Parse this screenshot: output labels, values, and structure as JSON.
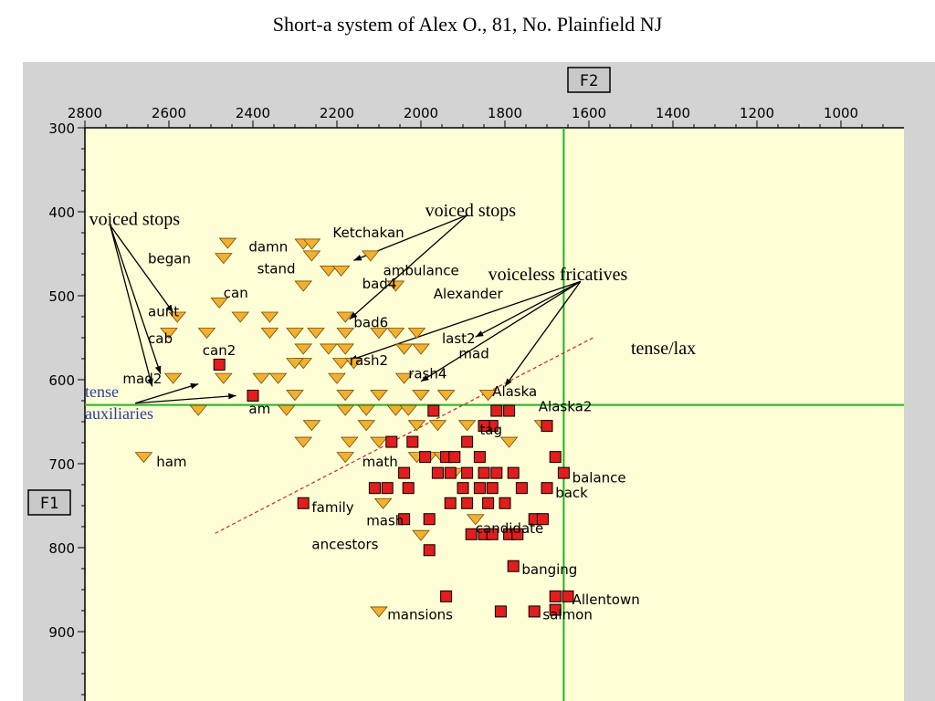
{
  "title": "Short-a system of Alex O., 81, No. Plainfield NJ",
  "colors": {
    "plot_bg": "#fdfdd6",
    "frame_bg": "#d3d3d3",
    "green": "#22b422",
    "tense_marker": "#e11d1d",
    "lax_marker": "#f0b030",
    "dashed": "#e02020",
    "blue_text": "#2a3aa8"
  },
  "chart_data": {
    "type": "scatter",
    "x_axis_name": "F2",
    "y_axis_name": "F1",
    "xlim": [
      2800,
      800
    ],
    "ylim": [
      300,
      950
    ],
    "x_ticks": [
      2800,
      2600,
      2400,
      2200,
      2000,
      1800,
      1600,
      1400,
      1200,
      1000
    ],
    "y_ticks": [
      300,
      400,
      500,
      600,
      700,
      800,
      900
    ],
    "reference_lines": {
      "F2": 1660,
      "F1": 630
    },
    "tense_lax_line": {
      "label": "tense/lax",
      "from": [
        2490,
        783
      ],
      "to": [
        1590,
        550
      ]
    },
    "lax_points": [
      [
        2460,
        437
      ],
      [
        2470,
        455
      ],
      [
        2280,
        438
      ],
      [
        2260,
        438
      ],
      [
        2260,
        452
      ],
      [
        2120,
        452
      ],
      [
        2220,
        470
      ],
      [
        2190,
        470
      ],
      [
        2280,
        488
      ],
      [
        2060,
        488
      ],
      [
        2480,
        508
      ],
      [
        2180,
        525
      ],
      [
        2580,
        525
      ],
      [
        2600,
        544
      ],
      [
        2510,
        544
      ],
      [
        2430,
        525
      ],
      [
        2360,
        525
      ],
      [
        2360,
        544
      ],
      [
        2300,
        544
      ],
      [
        2250,
        544
      ],
      [
        2180,
        544
      ],
      [
        2100,
        544
      ],
      [
        2060,
        544
      ],
      [
        2010,
        544
      ],
      [
        2280,
        563
      ],
      [
        2220,
        563
      ],
      [
        2180,
        563
      ],
      [
        2040,
        563
      ],
      [
        2000,
        563
      ],
      [
        2190,
        580
      ],
      [
        2160,
        580
      ],
      [
        2280,
        580
      ],
      [
        2300,
        580
      ],
      [
        2590,
        598
      ],
      [
        2470,
        598
      ],
      [
        2380,
        598
      ],
      [
        2340,
        598
      ],
      [
        2200,
        598
      ],
      [
        2040,
        598
      ],
      [
        2300,
        618
      ],
      [
        2180,
        618
      ],
      [
        2100,
        618
      ],
      [
        2000,
        618
      ],
      [
        1940,
        618
      ],
      [
        1840,
        618
      ],
      [
        2530,
        636
      ],
      [
        2320,
        636
      ],
      [
        2180,
        636
      ],
      [
        2130,
        636
      ],
      [
        2060,
        636
      ],
      [
        2030,
        636
      ],
      [
        2260,
        654
      ],
      [
        2130,
        654
      ],
      [
        2010,
        654
      ],
      [
        1960,
        654
      ],
      [
        1890,
        654
      ],
      [
        2280,
        674
      ],
      [
        2170,
        674
      ],
      [
        2100,
        674
      ],
      [
        1790,
        674
      ],
      [
        1710,
        654
      ],
      [
        2180,
        692
      ],
      [
        2010,
        692
      ],
      [
        1980,
        692
      ],
      [
        1950,
        692
      ],
      [
        1920,
        711
      ],
      [
        2090,
        747
      ],
      [
        1870,
        766
      ],
      [
        2000,
        785
      ],
      [
        2660,
        692
      ],
      [
        2100,
        876
      ]
    ],
    "tense_points": [
      [
        2480,
        582
      ],
      [
        2400,
        619
      ],
      [
        1970,
        637
      ],
      [
        1830,
        655
      ],
      [
        1850,
        655
      ],
      [
        1700,
        655
      ],
      [
        1820,
        637
      ],
      [
        1790,
        637
      ],
      [
        2070,
        674
      ],
      [
        2020,
        674
      ],
      [
        1890,
        674
      ],
      [
        1940,
        692
      ],
      [
        1990,
        692
      ],
      [
        1920,
        692
      ],
      [
        1860,
        692
      ],
      [
        1680,
        692
      ],
      [
        2040,
        711
      ],
      [
        1960,
        711
      ],
      [
        1930,
        711
      ],
      [
        1890,
        711
      ],
      [
        1850,
        711
      ],
      [
        1820,
        711
      ],
      [
        1780,
        711
      ],
      [
        1660,
        711
      ],
      [
        1900,
        729
      ],
      [
        1860,
        729
      ],
      [
        1830,
        729
      ],
      [
        1760,
        729
      ],
      [
        1700,
        729
      ],
      [
        2110,
        729
      ],
      [
        2080,
        729
      ],
      [
        2030,
        729
      ],
      [
        1930,
        747
      ],
      [
        1890,
        747
      ],
      [
        1840,
        747
      ],
      [
        1800,
        747
      ],
      [
        2280,
        747
      ],
      [
        1980,
        766
      ],
      [
        1730,
        766
      ],
      [
        1710,
        766
      ],
      [
        2040,
        766
      ],
      [
        1880,
        784
      ],
      [
        1850,
        784
      ],
      [
        1830,
        784
      ],
      [
        1790,
        784
      ],
      [
        1770,
        784
      ],
      [
        1980,
        803
      ],
      [
        1780,
        822
      ],
      [
        1940,
        858
      ],
      [
        1680,
        858
      ],
      [
        1650,
        858
      ],
      [
        1810,
        876
      ],
      [
        1730,
        876
      ],
      [
        1680,
        874
      ]
    ],
    "word_labels": [
      {
        "text": "damn",
        "x": 2410,
        "y": 442
      },
      {
        "text": "Ketchakan",
        "x": 2210,
        "y": 425
      },
      {
        "text": "began",
        "x": 2650,
        "y": 456
      },
      {
        "text": "stand",
        "x": 2390,
        "y": 468
      },
      {
        "text": "ambulance",
        "x": 2090,
        "y": 470
      },
      {
        "text": "bad4",
        "x": 2140,
        "y": 486
      },
      {
        "text": "can",
        "x": 2470,
        "y": 497
      },
      {
        "text": "Alexander",
        "x": 1970,
        "y": 498
      },
      {
        "text": "aunt",
        "x": 2650,
        "y": 519
      },
      {
        "text": "bad6",
        "x": 2160,
        "y": 532
      },
      {
        "text": "cab",
        "x": 2650,
        "y": 551
      },
      {
        "text": "last2",
        "x": 1950,
        "y": 551
      },
      {
        "text": "can2",
        "x": 2520,
        "y": 565
      },
      {
        "text": "mad",
        "x": 1910,
        "y": 569
      },
      {
        "text": "rash2",
        "x": 2170,
        "y": 577
      },
      {
        "text": "mad2",
        "x": 2710,
        "y": 599
      },
      {
        "text": "rash4",
        "x": 2030,
        "y": 593
      },
      {
        "text": "Alaska",
        "x": 1830,
        "y": 614
      },
      {
        "text": "am",
        "x": 2410,
        "y": 635
      },
      {
        "text": "Alaska2",
        "x": 1720,
        "y": 632
      },
      {
        "text": "tag",
        "x": 1860,
        "y": 660
      },
      {
        "text": "ham",
        "x": 2630,
        "y": 698
      },
      {
        "text": "math",
        "x": 2140,
        "y": 698
      },
      {
        "text": "balance",
        "x": 1640,
        "y": 717
      },
      {
        "text": "back",
        "x": 1680,
        "y": 735
      },
      {
        "text": "family",
        "x": 2260,
        "y": 752
      },
      {
        "text": "mash",
        "x": 2130,
        "y": 768
      },
      {
        "text": "candidate",
        "x": 1870,
        "y": 777
      },
      {
        "text": "ancestors",
        "x": 2260,
        "y": 796
      },
      {
        "text": "banging",
        "x": 1760,
        "y": 826
      },
      {
        "text": "Allentown",
        "x": 1640,
        "y": 862
      },
      {
        "text": "mansions",
        "x": 2080,
        "y": 880
      },
      {
        "text": "salmon",
        "x": 1710,
        "y": 880
      }
    ],
    "annotations": [
      {
        "text": "voiced stops",
        "x": 2790,
        "y": 409,
        "style": "note"
      },
      {
        "text": "voiced stops",
        "x": 1990,
        "y": 399,
        "style": "note"
      },
      {
        "text": "voiceless fricatives",
        "x": 1840,
        "y": 475,
        "style": "note"
      },
      {
        "text": "tense/lax",
        "x": 1500,
        "y": 563,
        "style": "note"
      },
      {
        "text": "tense",
        "x": 2800,
        "y": 614,
        "style": "note-blue"
      },
      {
        "text": "auxiliaries",
        "x": 2800,
        "y": 640,
        "style": "note-blue"
      }
    ],
    "arrows": [
      {
        "from": [
          2740,
          416
        ],
        "to": [
          2590,
          520
        ]
      },
      {
        "from": [
          2740,
          416
        ],
        "to": [
          2620,
          593
        ]
      },
      {
        "from": [
          2740,
          416
        ],
        "to": [
          2640,
          608
        ]
      },
      {
        "from": [
          1890,
          404
        ],
        "to": [
          2160,
          458
        ]
      },
      {
        "from": [
          1890,
          404
        ],
        "to": [
          2170,
          528
        ]
      },
      {
        "from": [
          1620,
          483
        ],
        "to": [
          1870,
          549
        ]
      },
      {
        "from": [
          1620,
          483
        ],
        "to": [
          2000,
          602
        ]
      },
      {
        "from": [
          1620,
          483
        ],
        "to": [
          2170,
          577
        ]
      },
      {
        "from": [
          1620,
          483
        ],
        "to": [
          1800,
          608
        ]
      },
      {
        "from": [
          2680,
          628
        ],
        "to": [
          2530,
          605
        ]
      },
      {
        "from": [
          2680,
          628
        ],
        "to": [
          2440,
          619
        ]
      }
    ]
  }
}
